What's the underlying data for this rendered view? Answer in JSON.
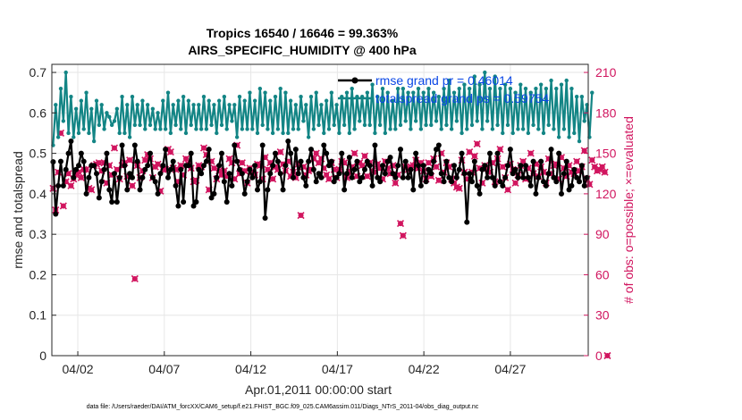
{
  "colors": {
    "rmse": "#000000",
    "spread": "#138585",
    "obs": "#d1155f",
    "legend_text": "#0a47e6",
    "grid": "#e6e6e6",
    "axis": "#262626"
  },
  "chart_data": {
    "type": "line",
    "title_line1": "Tropics 16540 / 16646 = 99.363%",
    "title_line2": "AIRS_SPECIFIC_HUMIDITY @ 400 hPa",
    "xlabel": "Apr.01,2011 00:00:00 start",
    "ylabel": "rmse and totalspread",
    "ylabel_right": "# of obs: o=possible; ×=evaluated",
    "xlim": [
      0.5,
      31.5
    ],
    "ylim": [
      0,
      0.72
    ],
    "ylim_right": [
      0,
      216
    ],
    "x_ticks": [
      {
        "v": 2,
        "label": "04/02"
      },
      {
        "v": 7,
        "label": "04/07"
      },
      {
        "v": 12,
        "label": "04/12"
      },
      {
        "v": 17,
        "label": "04/17"
      },
      {
        "v": 22,
        "label": "04/22"
      },
      {
        "v": 27,
        "label": "04/27"
      }
    ],
    "y_ticks": [
      "0",
      "0.1",
      "0.2",
      "0.3",
      "0.4",
      "0.5",
      "0.6",
      "0.7"
    ],
    "y_ticks_right": [
      "0",
      "30",
      "60",
      "90",
      "120",
      "150",
      "180",
      "210"
    ],
    "legend": {
      "rmse_label": "rmse grand pr = 0.46014",
      "spread_label": "totalspread grand ps = 0.59754",
      "position": "top-right"
    },
    "series": [
      {
        "name": "rmse",
        "values": [
          0.479,
          0.35,
          0.42,
          0.48,
          0.42,
          0.46,
          0.5,
          0.53,
          0.44,
          0.46,
          0.47,
          0.5,
          0.48,
          0.4,
          0.44,
          0.47,
          0.47,
          0.45,
          0.39,
          0.43,
          0.46,
          0.5,
          0.41,
          0.38,
          0.45,
          0.38,
          0.44,
          0.52,
          0.47,
          0.41,
          0.45,
          0.44,
          0.52,
          0.48,
          0.41,
          0.44,
          0.46,
          0.47,
          0.5,
          0.44,
          0.43,
          0.4,
          0.45,
          0.47,
          0.51,
          0.44,
          0.46,
          0.48,
          0.42,
          0.37,
          0.46,
          0.38,
          0.47,
          0.47,
          0.5,
          0.37,
          0.38,
          0.46,
          0.45,
          0.47,
          0.48,
          0.51,
          0.39,
          0.4,
          0.44,
          0.47,
          0.5,
          0.43,
          0.38,
          0.45,
          0.42,
          0.52,
          0.48,
          0.46,
          0.45,
          0.4,
          0.43,
          0.46,
          0.44,
          0.47,
          0.41,
          0.43,
          0.52,
          0.34,
          0.41,
          0.45,
          0.47,
          0.5,
          0.48,
          0.45,
          0.41,
          0.47,
          0.53,
          0.5,
          0.44,
          0.51,
          0.45,
          0.48,
          0.44,
          0.42,
          0.48,
          0.51,
          0.46,
          0.43,
          0.45,
          0.44,
          0.52,
          0.5,
          0.47,
          0.48,
          0.43,
          0.44,
          0.45,
          0.5,
          0.41,
          0.45,
          0.49,
          0.44,
          0.46,
          0.48,
          0.43,
          0.44,
          0.46,
          0.48,
          0.47,
          0.42,
          0.52,
          0.44,
          0.43,
          0.47,
          0.45,
          0.48,
          0.49,
          0.45,
          0.44,
          0.47,
          0.51,
          0.44,
          0.48,
          0.44,
          0.46,
          0.41,
          0.5,
          0.47,
          0.42,
          0.47,
          0.43,
          0.46,
          0.45,
          0.48,
          0.51,
          0.52,
          0.45,
          0.43,
          0.48,
          0.44,
          0.43,
          0.47,
          0.44,
          0.46,
          0.5,
          0.45,
          0.33,
          0.45,
          0.43,
          0.48,
          0.42,
          0.4,
          0.46,
          0.47,
          0.44,
          0.5,
          0.44,
          0.42,
          0.5,
          0.43,
          0.42,
          0.44,
          0.47,
          0.51,
          0.45,
          0.46,
          0.44,
          0.47,
          0.44,
          0.47,
          0.44,
          0.42,
          0.48,
          0.4,
          0.44,
          0.48,
          0.43,
          0.42,
          0.45,
          0.51,
          0.44,
          0.43,
          0.5,
          0.4,
          0.45,
          0.48,
          0.41,
          0.42,
          0.46,
          0.44,
          0.43,
          0.47,
          0.42,
          0.44
        ]
      },
      {
        "name": "totalspread",
        "values": [
          0.52,
          0.62,
          0.54,
          0.66,
          0.58,
          0.7,
          0.55,
          0.64,
          0.54,
          0.61,
          0.55,
          0.63,
          0.56,
          0.65,
          0.55,
          0.61,
          0.53,
          0.63,
          0.57,
          0.62,
          0.56,
          0.6,
          0.59,
          0.57,
          0.58,
          0.61,
          0.55,
          0.64,
          0.55,
          0.62,
          0.54,
          0.64,
          0.57,
          0.62,
          0.57,
          0.63,
          0.56,
          0.62,
          0.57,
          0.61,
          0.56,
          0.6,
          0.56,
          0.63,
          0.56,
          0.65,
          0.55,
          0.62,
          0.57,
          0.63,
          0.56,
          0.64,
          0.55,
          0.63,
          0.57,
          0.62,
          0.56,
          0.62,
          0.56,
          0.64,
          0.56,
          0.63,
          0.57,
          0.62,
          0.55,
          0.63,
          0.57,
          0.64,
          0.56,
          0.62,
          0.58,
          0.62,
          0.54,
          0.64,
          0.56,
          0.63,
          0.56,
          0.65,
          0.56,
          0.63,
          0.55,
          0.66,
          0.57,
          0.65,
          0.56,
          0.63,
          0.55,
          0.64,
          0.56,
          0.66,
          0.55,
          0.65,
          0.55,
          0.63,
          0.56,
          0.62,
          0.56,
          0.64,
          0.58,
          0.62,
          0.54,
          0.64,
          0.56,
          0.65,
          0.57,
          0.62,
          0.55,
          0.63,
          0.56,
          0.65,
          0.57,
          0.62,
          0.55,
          0.64,
          0.57,
          0.65,
          0.55,
          0.66,
          0.56,
          0.64,
          0.58,
          0.64,
          0.57,
          0.65,
          0.57,
          0.67,
          0.55,
          0.64,
          0.57,
          0.66,
          0.55,
          0.65,
          0.56,
          0.63,
          0.56,
          0.66,
          0.57,
          0.66,
          0.58,
          0.65,
          0.56,
          0.65,
          0.58,
          0.66,
          0.56,
          0.65,
          0.57,
          0.66,
          0.57,
          0.65,
          0.58,
          0.64,
          0.56,
          0.66,
          0.57,
          0.68,
          0.56,
          0.65,
          0.58,
          0.66,
          0.55,
          0.67,
          0.56,
          0.66,
          0.57,
          0.69,
          0.58,
          0.67,
          0.56,
          0.7,
          0.58,
          0.66,
          0.56,
          0.69,
          0.57,
          0.66,
          0.55,
          0.67,
          0.57,
          0.66,
          0.55,
          0.65,
          0.56,
          0.67,
          0.56,
          0.66,
          0.55,
          0.65,
          0.57,
          0.66,
          0.56,
          0.67,
          0.55,
          0.66,
          0.57,
          0.68,
          0.56,
          0.66,
          0.54,
          0.67,
          0.56,
          0.68,
          0.54,
          0.66,
          0.55,
          0.64,
          0.53,
          0.64,
          0.58,
          0.62,
          0.54,
          0.65
        ]
      }
    ],
    "obs_values": [
      124,
      108,
      136,
      165,
      111,
      129,
      135,
      126,
      131,
      134,
      136,
      132,
      138,
      138,
      124,
      123,
      141,
      142,
      143,
      137,
      143,
      128,
      141,
      134,
      154,
      138,
      131,
      141,
      143,
      133,
      145,
      126,
      57,
      141,
      132,
      137,
      145,
      149,
      146,
      132,
      140,
      142,
      122,
      138,
      138,
      153,
      151,
      139,
      138,
      129,
      141,
      134,
      146,
      142,
      139,
      129,
      130,
      141,
      140,
      154,
      149,
      123,
      144,
      139,
      131,
      137,
      134,
      137,
      133,
      146,
      143,
      131,
      156,
      135,
      143,
      137,
      128,
      139,
      136,
      134,
      142,
      141,
      131,
      147,
      138,
      143,
      131,
      140,
      138,
      151,
      142,
      137,
      144,
      133,
      136,
      132,
      142,
      104,
      140,
      134,
      137,
      138,
      146,
      150,
      143,
      146,
      139,
      134,
      131,
      143,
      138,
      132,
      138,
      144,
      143,
      132,
      136,
      140,
      150,
      133,
      143,
      141,
      148,
      133,
      143,
      137,
      136,
      142,
      139,
      131,
      144,
      139,
      135,
      141,
      128,
      134,
      98,
      89,
      140,
      138,
      140,
      141,
      145,
      139,
      143,
      137,
      131,
      143,
      133,
      146,
      140,
      130,
      150,
      136,
      143,
      140,
      131,
      128,
      125,
      124,
      145,
      136,
      131,
      151,
      136,
      148,
      157,
      139,
      128,
      141,
      139,
      136,
      143,
      129,
      146,
      153,
      140,
      132,
      123,
      142,
      138,
      128,
      134,
      141,
      144,
      131,
      139,
      150,
      135,
      142,
      133,
      140,
      136,
      128,
      146,
      135,
      141,
      142,
      131,
      147,
      139,
      133,
      141,
      136,
      135,
      144,
      137,
      140,
      152,
      131,
      127,
      145,
      140,
      137,
      138,
      140,
      136,
      0
    ]
  },
  "footer": "data file: /Users/raeder/DAI/ATM_forcXX/CAM6_setup/f.e21.FHIST_BGC.f09_025.CAM6assim.011/Diags_NTrS_2011-04/obs_diag_output.nc"
}
